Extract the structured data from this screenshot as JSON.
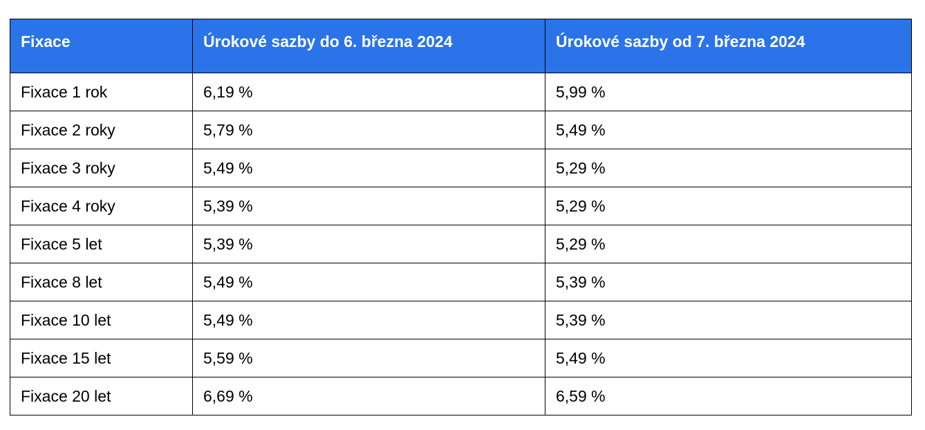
{
  "table": {
    "header_bg": "#2a73e8",
    "columns": [
      "Fixace",
      "Úrokové sazby do 6. března 2024",
      "Úrokové sazby od 7. března 2024"
    ],
    "rows": [
      [
        "Fixace 1 rok",
        "6,19 %",
        "5,99 %"
      ],
      [
        "Fixace 2 roky",
        "5,79 %",
        "5,49 %"
      ],
      [
        "Fixace 3 roky",
        "5,49 %",
        "5,29 %"
      ],
      [
        "Fixace 4 roky",
        "5,39 %",
        "5,29 %"
      ],
      [
        "Fixace 5 let",
        "5,39 %",
        "5,29 %"
      ],
      [
        "Fixace 8 let",
        "5,49 %",
        "5,39 %"
      ],
      [
        "Fixace 10 let",
        "5,49 %",
        "5,39 %"
      ],
      [
        "Fixace 15 let",
        "5,59 %",
        "5,49 %"
      ],
      [
        "Fixace 20 let",
        "6,69 %",
        "6,59 %"
      ]
    ]
  }
}
